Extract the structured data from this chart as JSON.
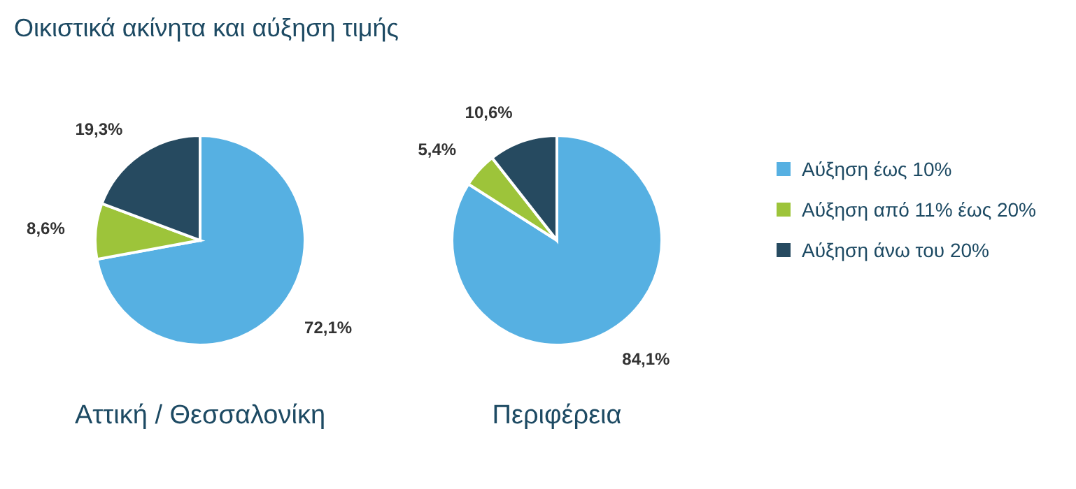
{
  "chart_data": [
    {
      "type": "pie",
      "title": "Οικιστικά ακίνητα και αύξηση τιμής",
      "xlabel": "Αττική / Θεσσαλονίκη",
      "categories": [
        null,
        null,
        null
      ],
      "values": [
        72.1,
        8.6,
        19.3
      ],
      "value_labels": [
        "72,1%",
        "8,6%",
        "19,3%"
      ],
      "colors": [
        "#56b0e2",
        "#9dc43a",
        "#264a60"
      ]
    },
    {
      "type": "pie",
      "xlabel": "Περιφέρεια",
      "categories": [
        "Αύξηση έως 10%",
        "Αύξηση από 11% έως 20%",
        "Αύξηση άνω του 20%"
      ],
      "values": [
        84.1,
        5.4,
        10.6
      ],
      "value_labels": [
        "84,1%",
        "5,4%",
        "10,6%"
      ],
      "colors": [
        "#56b0e2",
        "#9dc43a",
        "#264a60"
      ],
      "legend": "right"
    }
  ]
}
